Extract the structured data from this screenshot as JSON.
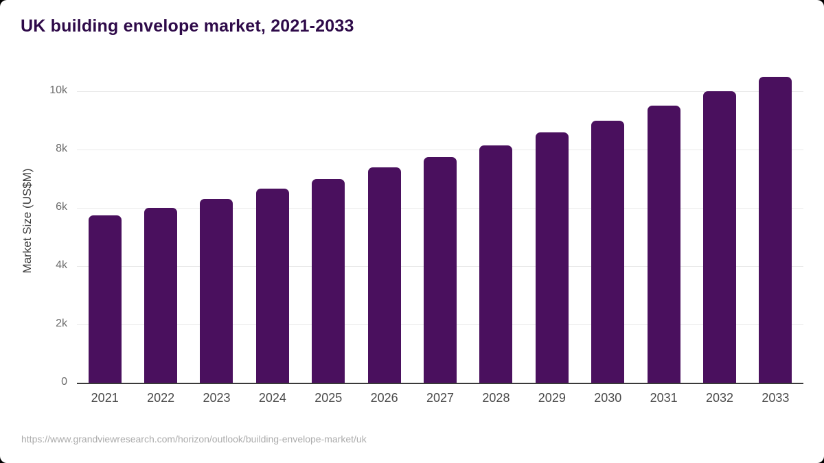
{
  "page": {
    "title": "UK building envelope market, 2021-2033",
    "source_url": "https://www.grandviewresearch.com/horizon/outlook/building-envelope-market/uk"
  },
  "chart_data": {
    "type": "bar",
    "title": "UK building envelope market, 2021-2033",
    "categories": [
      "2021",
      "2022",
      "2023",
      "2024",
      "2025",
      "2026",
      "2027",
      "2028",
      "2029",
      "2030",
      "2031",
      "2032",
      "2033"
    ],
    "values": [
      5750,
      6000,
      6300,
      6650,
      7000,
      7400,
      7750,
      8150,
      8600,
      9000,
      9500,
      10000,
      10500
    ],
    "xlabel": "",
    "ylabel": "Market Size (US$M)",
    "ylim": [
      0,
      10600
    ],
    "ytick_labels": [
      "0",
      "2k",
      "4k",
      "6k",
      "8k",
      "10k"
    ],
    "ytick_values": [
      0,
      2000,
      4000,
      6000,
      8000,
      10000
    ],
    "grid": true,
    "legend": false,
    "bar_color": "#4a105e"
  },
  "colors": {
    "title": "#2e0a49",
    "bar": "#4a105e",
    "axis_line": "#3a3a3a",
    "gridline": "#e9e9e9",
    "ytick_text": "#6b6b6b",
    "xtick_text": "#4a4a4a",
    "ylabel_text": "#3b3b3b",
    "source_text": "#ababab",
    "card_background": "#ffffff"
  }
}
